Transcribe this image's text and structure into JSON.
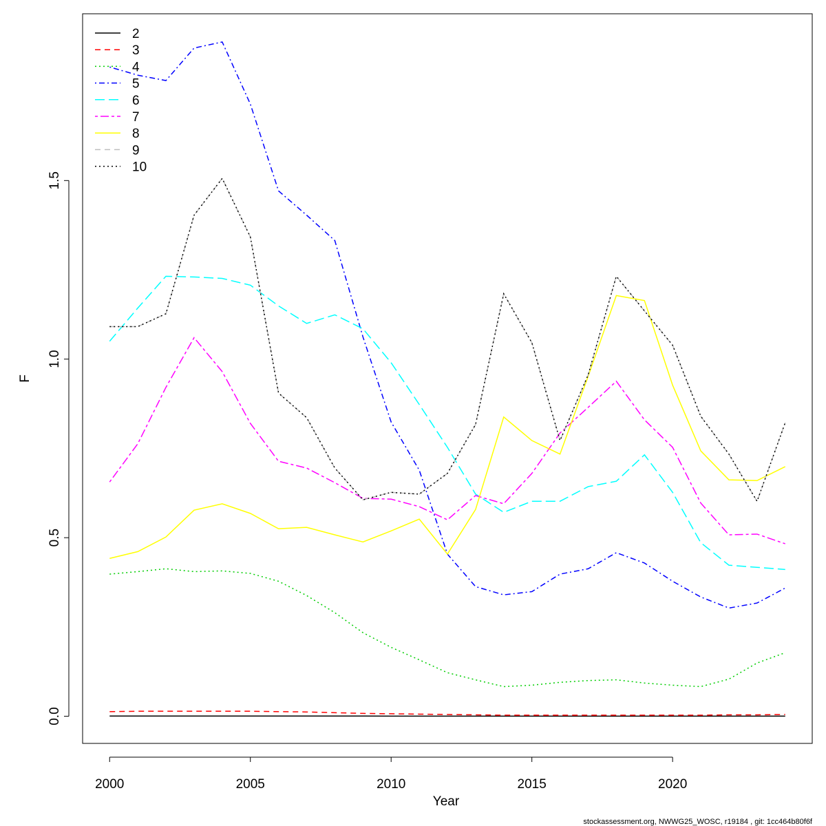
{
  "chart_data": {
    "type": "line",
    "xlabel": "Year",
    "ylabel": "F",
    "caption": "stockassessment.org, NWWG25_WOSC, r19184 , git: 1cc464b80f6f",
    "x": [
      2000,
      2001,
      2002,
      2003,
      2004,
      2005,
      2006,
      2007,
      2008,
      2009,
      2010,
      2011,
      2012,
      2013,
      2014,
      2015,
      2016,
      2017,
      2018,
      2019,
      2020,
      2021,
      2022,
      2023,
      2024
    ],
    "xlim": [
      1999.04,
      2024.96
    ],
    "xticks": [
      2000,
      2005,
      2010,
      2015,
      2020
    ],
    "ylim": [
      -0.076,
      1.967
    ],
    "yticks": [
      {
        "value": 0,
        "label": "0.0"
      },
      0.5,
      {
        "value": 1,
        "label": "1.0"
      },
      1.5
    ],
    "legend": "top-left",
    "series": [
      {
        "name": "2",
        "color": "#000000",
        "dash": "solid",
        "values": [
          0.0005,
          0.0005,
          0.0005,
          0.0005,
          0.0005,
          0.0005,
          0.0005,
          0.0005,
          0.0005,
          0.0005,
          0.0004,
          0.0004,
          0.0003,
          0.0003,
          0.0003,
          0.0003,
          0.0003,
          0.0003,
          0.0003,
          0.0003,
          0.0003,
          0.0003,
          0.0003,
          0.0003,
          0.0003
        ]
      },
      {
        "name": "3",
        "color": "#ff0000",
        "dash": "dashed",
        "values": [
          0.013,
          0.014,
          0.014,
          0.014,
          0.014,
          0.014,
          0.013,
          0.012,
          0.01,
          0.008,
          0.007,
          0.006,
          0.005,
          0.004,
          0.003,
          0.003,
          0.003,
          0.003,
          0.003,
          0.003,
          0.003,
          0.003,
          0.004,
          0.004,
          0.005
        ]
      },
      {
        "name": "4",
        "color": "#00cd00",
        "dash": "dotted",
        "values": [
          0.398,
          0.405,
          0.413,
          0.405,
          0.407,
          0.4,
          0.378,
          0.338,
          0.29,
          0.234,
          0.193,
          0.158,
          0.122,
          0.102,
          0.083,
          0.087,
          0.095,
          0.1,
          0.102,
          0.093,
          0.087,
          0.083,
          0.104,
          0.149,
          0.178
        ]
      },
      {
        "name": "5",
        "color": "#0000ff",
        "dash": "dotdash",
        "values": [
          1.818,
          1.795,
          1.78,
          1.871,
          1.888,
          1.714,
          1.471,
          1.403,
          1.332,
          1.062,
          0.824,
          0.689,
          0.454,
          0.363,
          0.34,
          0.349,
          0.398,
          0.413,
          0.458,
          0.429,
          0.378,
          0.334,
          0.303,
          0.317,
          0.359
        ]
      },
      {
        "name": "6",
        "color": "#00ffff",
        "dash": "longdash",
        "values": [
          1.05,
          1.143,
          1.232,
          1.23,
          1.226,
          1.207,
          1.149,
          1.1,
          1.124,
          1.085,
          0.99,
          0.873,
          0.753,
          0.622,
          0.571,
          0.602,
          0.602,
          0.643,
          0.658,
          0.732,
          0.627,
          0.486,
          0.423,
          0.417,
          0.411
        ]
      },
      {
        "name": "7",
        "color": "#ff00ff",
        "dash": "twodash",
        "values": [
          0.656,
          0.763,
          0.921,
          1.06,
          0.965,
          0.82,
          0.714,
          0.695,
          0.654,
          0.61,
          0.608,
          0.587,
          0.55,
          0.618,
          0.595,
          0.68,
          0.793,
          0.865,
          0.938,
          0.83,
          0.753,
          0.597,
          0.508,
          0.51,
          0.483
        ]
      },
      {
        "name": "8",
        "color": "#ffff00",
        "dash": "solid",
        "values": [
          0.442,
          0.461,
          0.502,
          0.577,
          0.595,
          0.568,
          0.525,
          0.529,
          0.508,
          0.488,
          0.519,
          0.552,
          0.454,
          0.579,
          0.838,
          0.772,
          0.734,
          0.952,
          1.178,
          1.164,
          0.927,
          0.743,
          0.662,
          0.66,
          0.699
        ]
      },
      {
        "name": "9",
        "color": "#bebebe",
        "dash": "dashed",
        "values": [
          1.091,
          1.091,
          1.127,
          1.403,
          1.506,
          1.342,
          0.905,
          0.836,
          0.695,
          0.606,
          0.627,
          0.622,
          0.68,
          0.817,
          1.183,
          1.046,
          0.772,
          0.956,
          1.232,
          1.135,
          1.039,
          0.84,
          0.734,
          0.602,
          0.822
        ]
      },
      {
        "name": "10",
        "color": "#000000",
        "dash": "dotted",
        "values": [
          1.091,
          1.091,
          1.127,
          1.403,
          1.506,
          1.342,
          0.905,
          0.836,
          0.695,
          0.606,
          0.627,
          0.622,
          0.68,
          0.817,
          1.183,
          1.046,
          0.772,
          0.956,
          1.232,
          1.135,
          1.039,
          0.84,
          0.734,
          0.602,
          0.822
        ]
      }
    ]
  }
}
